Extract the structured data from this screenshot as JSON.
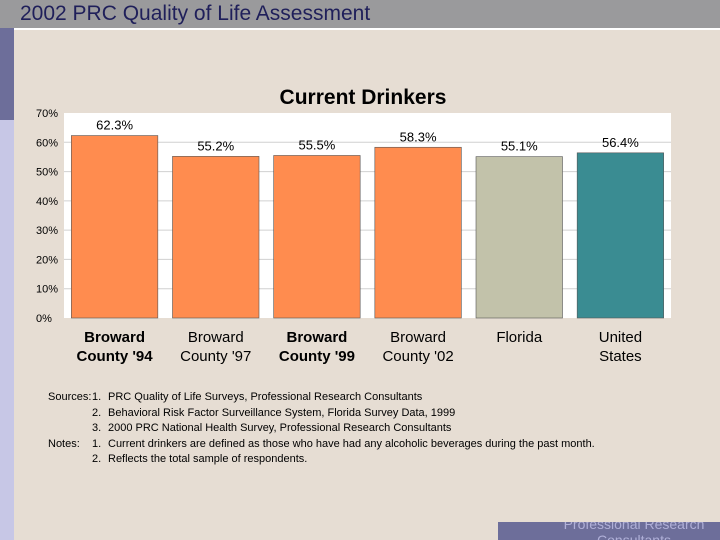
{
  "header": {
    "title": "2002 PRC Quality of Life Assessment"
  },
  "chart_data": {
    "type": "bar",
    "title": "Current Drinkers",
    "categories": [
      [
        "Broward",
        "County '94"
      ],
      [
        "Broward",
        "County '97"
      ],
      [
        "Broward",
        "County '99"
      ],
      [
        "Broward",
        "County '02"
      ],
      [
        "Florida"
      ],
      [
        "United",
        "States"
      ]
    ],
    "values": [
      62.3,
      55.2,
      55.5,
      58.3,
      55.1,
      56.4
    ],
    "value_labels": [
      "62.3%",
      "55.2%",
      "55.5%",
      "58.3%",
      "55.1%",
      "56.4%"
    ],
    "colors": [
      "#ff8c4f",
      "#ff8c4f",
      "#ff8c4f",
      "#ff8c4f",
      "#c2c2aa",
      "#3a8c92"
    ],
    "category_bold": [
      true,
      false,
      true,
      false,
      false,
      false
    ],
    "ylim": [
      0,
      70
    ],
    "yticks": [
      "0%",
      "10%",
      "20%",
      "30%",
      "40%",
      "50%",
      "60%",
      "70%"
    ],
    "xlabel": "",
    "ylabel": "",
    "grid": true
  },
  "notes": {
    "sources_label": "Sources:",
    "notes_label": "Notes:",
    "sources": [
      {
        "num": "1.",
        "text": "PRC Quality of Life Surveys, Professional Research Consultants"
      },
      {
        "num": "2.",
        "text": "Behavioral Risk Factor Surveillance System, Florida Survey Data, 1999"
      },
      {
        "num": "3.",
        "text": "2000 PRC National Health Survey, Professional Research Consultants"
      }
    ],
    "notes": [
      {
        "num": "1.",
        "text": "Current drinkers are defined as those who have had any alcoholic beverages during the past month."
      },
      {
        "num": "2.",
        "text": "Reflects the total sample of respondents."
      }
    ]
  },
  "footer": {
    "text": "Professional Research Consultants"
  }
}
